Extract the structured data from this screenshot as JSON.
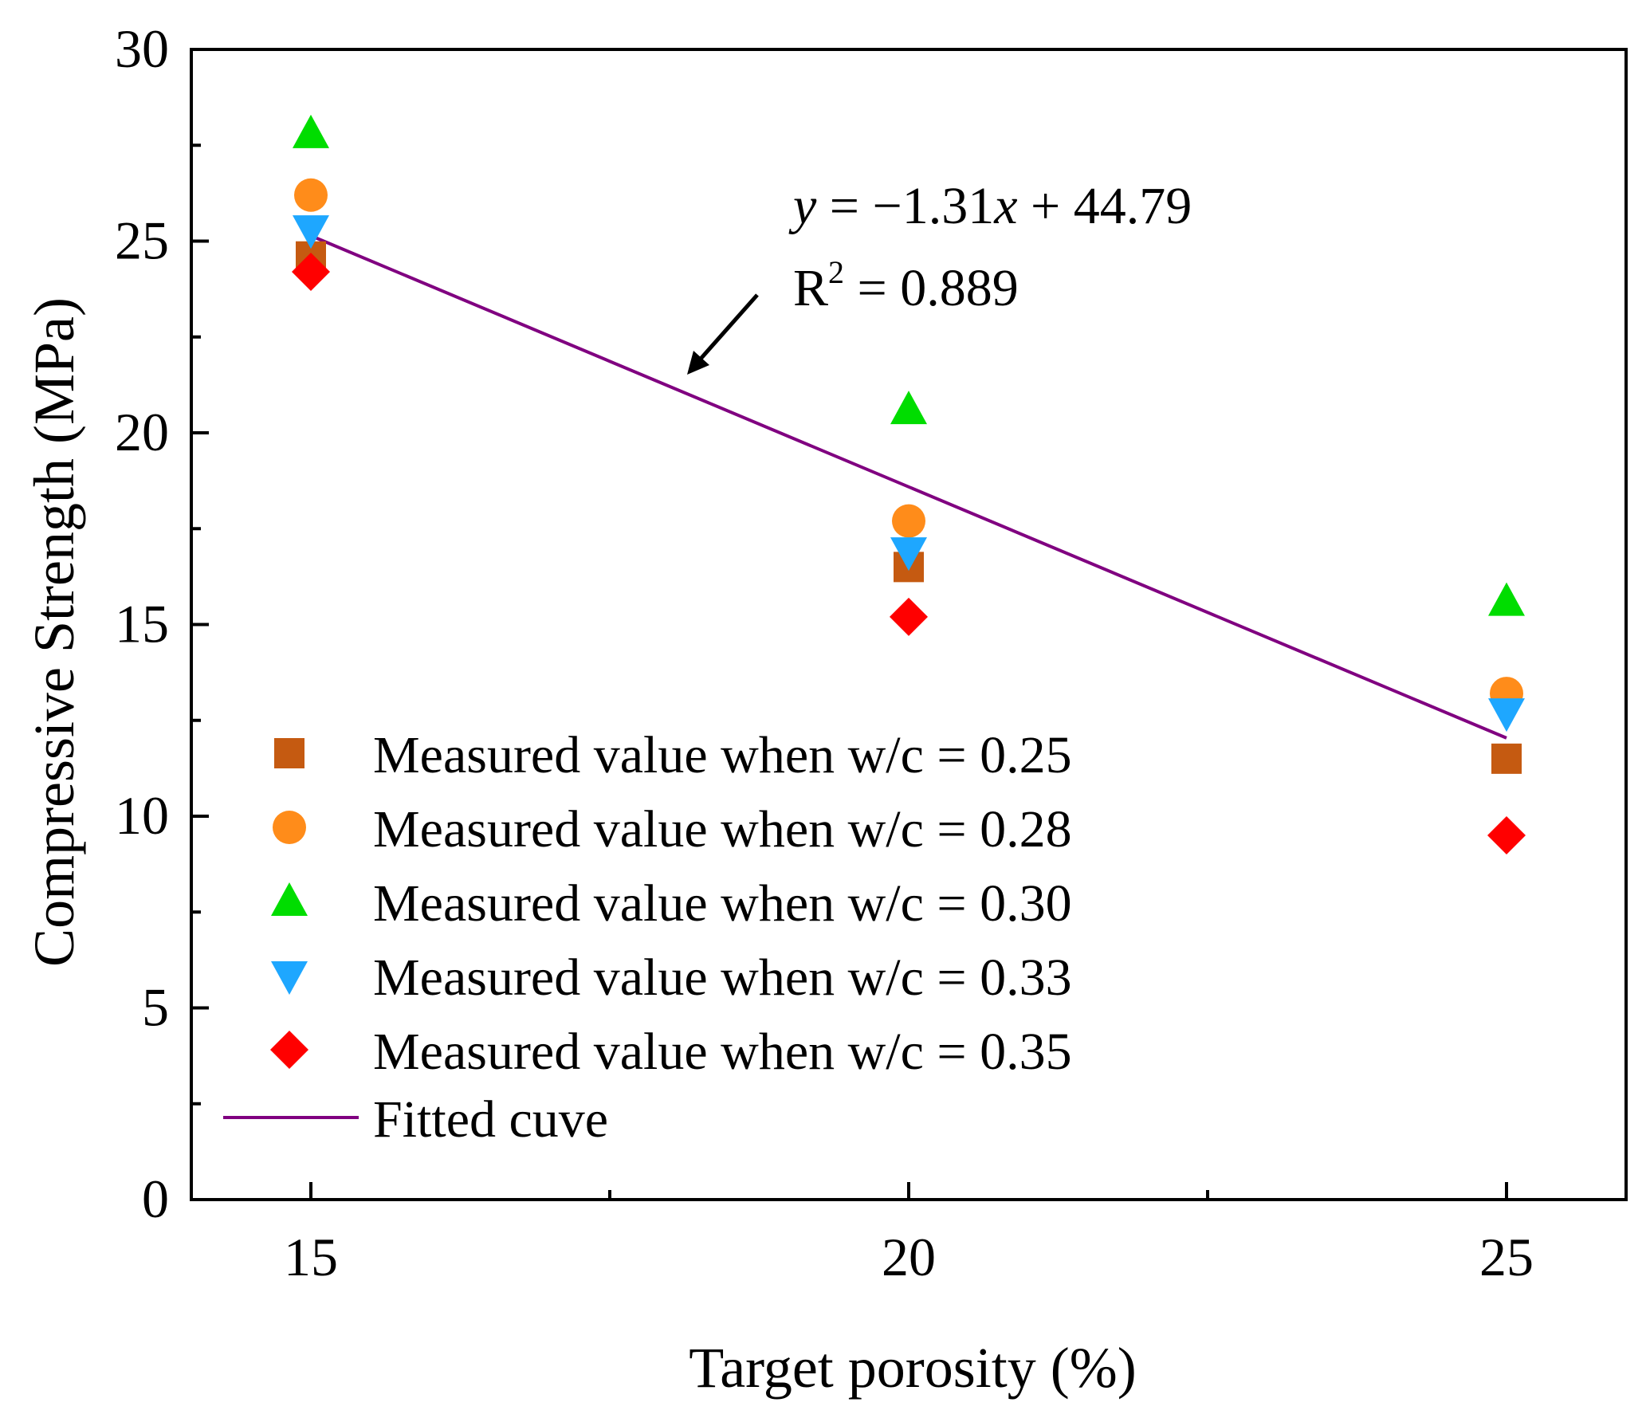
{
  "chart_data": {
    "type": "scatter",
    "title": "",
    "xlabel": "Target porosity (%)",
    "ylabel": "Compressive Strength (MPa)",
    "xlim": [
      14,
      26
    ],
    "ylim": [
      0,
      30
    ],
    "xticks": [
      15,
      20,
      25
    ],
    "yticks": [
      0,
      5,
      10,
      15,
      20,
      25,
      30
    ],
    "grid": false,
    "legend_position": "bottom-left",
    "series": [
      {
        "name": "Measured value when w/c = 0.25",
        "marker": "square",
        "color": "#C55A11",
        "x": [
          15,
          20,
          25
        ],
        "y": [
          24.6,
          16.5,
          11.5
        ]
      },
      {
        "name": "Measured value when w/c = 0.28",
        "marker": "circle",
        "color": "#FF8C1A",
        "x": [
          15,
          20,
          25
        ],
        "y": [
          26.2,
          17.7,
          13.2
        ]
      },
      {
        "name": "Measured value when w/c = 0.30",
        "marker": "triangle-up",
        "color": "#00DD00",
        "x": [
          15,
          20,
          25
        ],
        "y": [
          27.8,
          20.6,
          15.6
        ]
      },
      {
        "name": "Measured value when w/c = 0.33",
        "marker": "triangle-down",
        "color": "#1EA7FF",
        "x": [
          15,
          20,
          25
        ],
        "y": [
          25.3,
          16.9,
          12.7
        ]
      },
      {
        "name": "Measured value when w/c = 0.35",
        "marker": "diamond",
        "color": "#FF0000",
        "x": [
          15,
          20,
          25
        ],
        "y": [
          24.2,
          15.2,
          9.5
        ]
      }
    ],
    "fit": {
      "name": "Fitted cuve",
      "color": "#800080",
      "slope": -1.31,
      "intercept": 44.79,
      "x_range": [
        15,
        25
      ]
    },
    "annotation": {
      "y_symbol": "y",
      "equation_rest": " = −1.31",
      "x_symbol": "x",
      "equation_end": " + 44.79",
      "r_prefix": "R",
      "r_sup": "2",
      "r_rest": " = 0.889"
    }
  }
}
